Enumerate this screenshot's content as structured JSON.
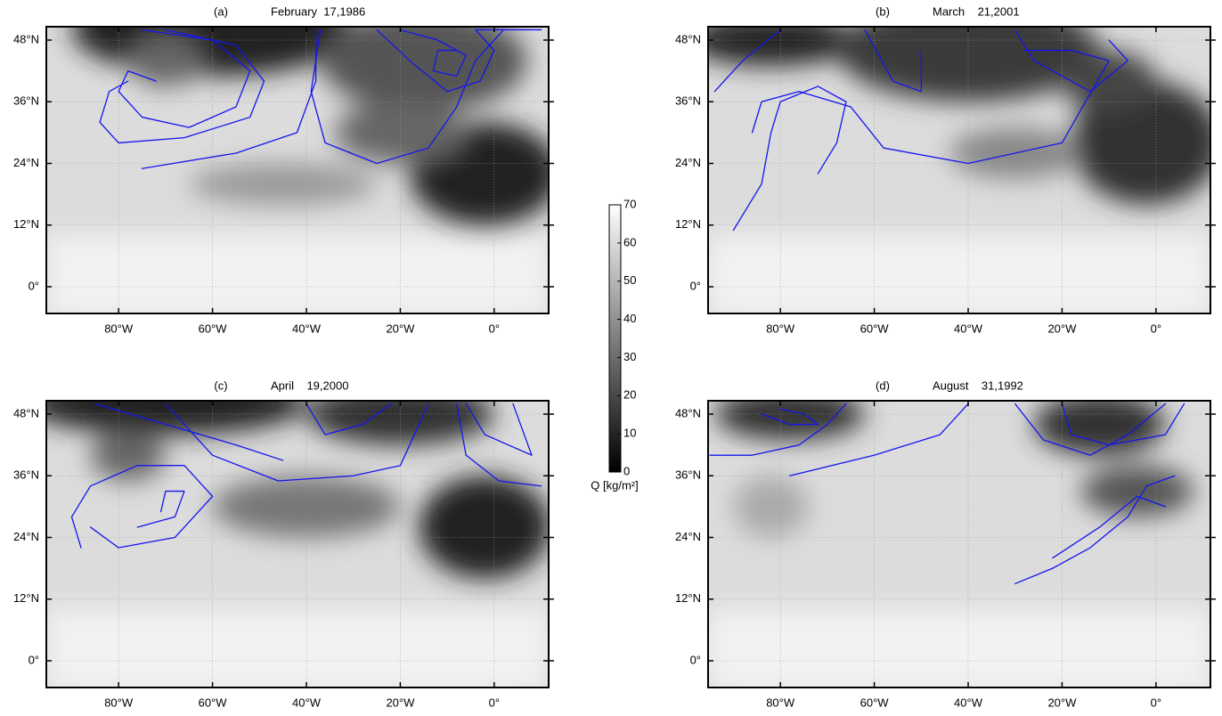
{
  "extent": {
    "lon": [
      -95.4,
      11.6
    ],
    "lat": [
      -5.2,
      50.6
    ]
  },
  "lon_ticks": [
    {
      "value": -80,
      "label": "80°W"
    },
    {
      "value": -60,
      "label": "60°W"
    },
    {
      "value": -40,
      "label": "40°W"
    },
    {
      "value": -20,
      "label": "20°W"
    },
    {
      "value": 0,
      "label": "0°"
    }
  ],
  "lat_ticks": [
    {
      "value": 48,
      "label": "48°N"
    },
    {
      "value": 36,
      "label": "36°N"
    },
    {
      "value": 24,
      "label": "24°N"
    },
    {
      "value": 12,
      "label": "12°N"
    },
    {
      "value": 0,
      "label": "0°"
    }
  ],
  "panels": [
    {
      "label": "(a)",
      "date": "February  17,1986"
    },
    {
      "label": "(b)",
      "date": "March    21,2001"
    },
    {
      "label": "(c)",
      "date": "April    19,2000"
    },
    {
      "label": "(d)",
      "date": "August    31,1992"
    }
  ],
  "colorbar": {
    "label": "Q [kg/m²]",
    "range": [
      0,
      70
    ],
    "ticks": [
      0,
      10,
      20,
      30,
      40,
      50,
      60,
      70
    ]
  }
}
